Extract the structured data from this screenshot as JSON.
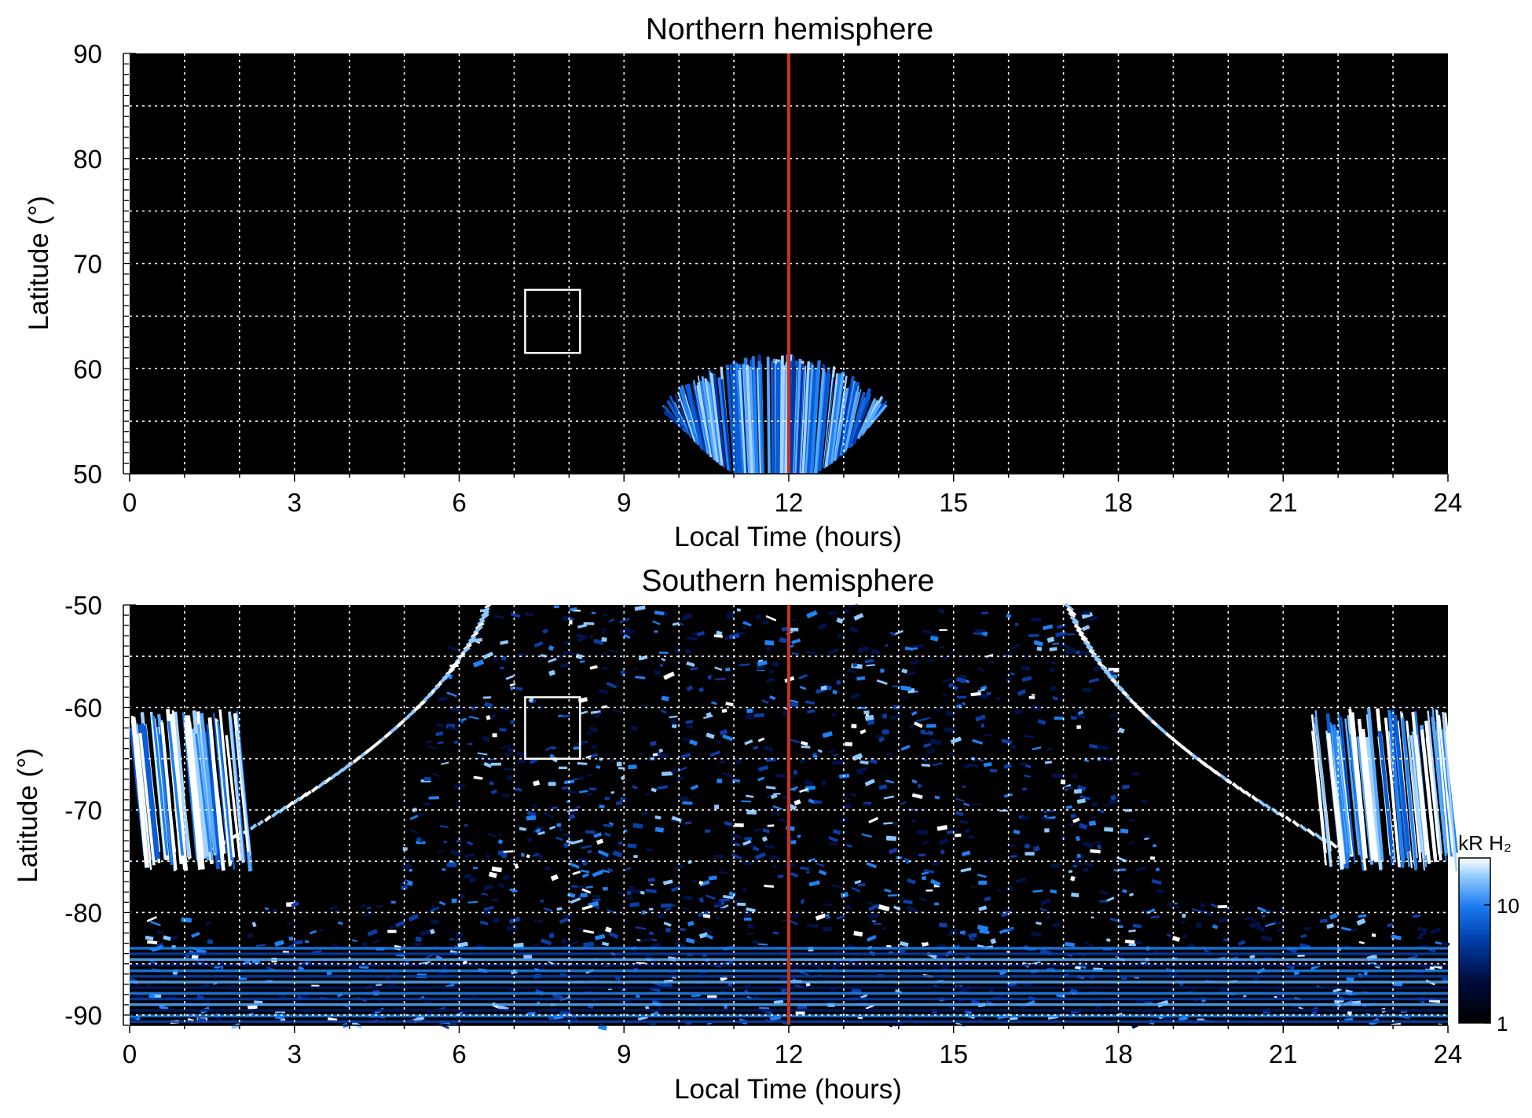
{
  "chart_data": [
    {
      "type": "heatmap",
      "title": "Northern hemisphere",
      "xlabel": "Local Time (hours)",
      "ylabel": "Latitude (°)",
      "xlim": [
        0,
        24
      ],
      "ylim": [
        50,
        90
      ],
      "xticks": [
        "0",
        "3",
        "6",
        "9",
        "12",
        "15",
        "18",
        "21",
        "24"
      ],
      "yticks": [
        "50",
        "60",
        "70",
        "80",
        "90"
      ],
      "grid": true,
      "noon_marker": {
        "x": 12,
        "color": "#c8321e"
      },
      "box": {
        "x": [
          7.2,
          8.2
        ],
        "y": [
          61.5,
          67.5
        ],
        "color": "#ffffff"
      },
      "emission_region": {
        "x": [
          9.7,
          13.8
        ],
        "y": [
          50,
          61
        ],
        "shape": "fan"
      }
    },
    {
      "type": "heatmap",
      "title": "Southern hemisphere",
      "xlabel": "Local Time (hours)",
      "ylabel": "Latitude (°)",
      "xlim": [
        0,
        24
      ],
      "ylim": [
        -91,
        -50
      ],
      "xticks": [
        "0",
        "3",
        "6",
        "9",
        "12",
        "15",
        "18",
        "21",
        "24"
      ],
      "yticks": [
        "-90",
        "-80",
        "-70",
        "-60",
        "-50"
      ],
      "grid": true,
      "noon_marker": {
        "x": 12,
        "color": "#c8321e"
      },
      "box": {
        "x": [
          7.2,
          8.2
        ],
        "y": [
          -65,
          -59
        ],
        "color": "#ffffff"
      },
      "colorbar": {
        "label": "kR H₂",
        "ticks": [
          "1",
          "10"
        ],
        "scale": "log",
        "range": [
          1,
          25
        ],
        "colors": [
          "#000000",
          "#000b3a",
          "#003ea8",
          "#1a78f0",
          "#8cc8ff",
          "#ffffff"
        ]
      }
    }
  ]
}
